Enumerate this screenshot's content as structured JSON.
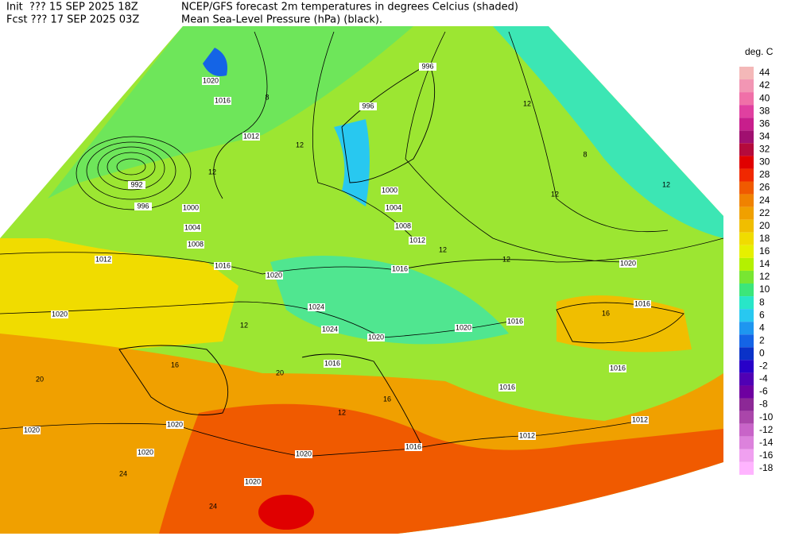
{
  "header": {
    "line1_left": "Init  ??? 15 SEP 2025 18Z",
    "line1_right": "NCEP/GFS forecast 2m temperatures in degrees Celcius (shaded)",
    "line2_left": "Fcst ??? 17 SEP 2025 03Z",
    "line2_right": "Mean Sea-Level Pressure (hPa) (black)."
  },
  "legend": {
    "title": "deg. C",
    "items": [
      {
        "label": 44,
        "color": "#f4b8b8"
      },
      {
        "label": 42,
        "color": "#f296b4"
      },
      {
        "label": 40,
        "color": "#f070a8"
      },
      {
        "label": 38,
        "color": "#e040a0"
      },
      {
        "label": 36,
        "color": "#c81e8c"
      },
      {
        "label": 34,
        "color": "#a01070"
      },
      {
        "label": 32,
        "color": "#b40a3c"
      },
      {
        "label": 30,
        "color": "#e00000"
      },
      {
        "label": 28,
        "color": "#f02800"
      },
      {
        "label": 26,
        "color": "#f05a00"
      },
      {
        "label": 24,
        "color": "#f08200"
      },
      {
        "label": 22,
        "color": "#f0a000"
      },
      {
        "label": 20,
        "color": "#f0be00"
      },
      {
        "label": 18,
        "color": "#f0dc00"
      },
      {
        "label": 16,
        "color": "#e6f000"
      },
      {
        "label": 14,
        "color": "#b4f000"
      },
      {
        "label": 12,
        "color": "#78e632"
      },
      {
        "label": 10,
        "color": "#3ce67a"
      },
      {
        "label": 8,
        "color": "#28e6c8"
      },
      {
        "label": 6,
        "color": "#28c8f0"
      },
      {
        "label": 4,
        "color": "#1e96f0"
      },
      {
        "label": 2,
        "color": "#1464e6"
      },
      {
        "label": 0,
        "color": "#0a32c8"
      },
      {
        "label": -2,
        "color": "#2800c8"
      },
      {
        "label": -4,
        "color": "#5000b4"
      },
      {
        "label": -6,
        "color": "#6e00a0"
      },
      {
        "label": -8,
        "color": "#8c2896"
      },
      {
        "label": -10,
        "color": "#aa46aa"
      },
      {
        "label": -12,
        "color": "#c864c8"
      },
      {
        "label": -14,
        "color": "#dc82dc"
      },
      {
        "label": -16,
        "color": "#f0a0f0"
      },
      {
        "label": -18,
        "color": "#ffb4ff"
      }
    ]
  },
  "map": {
    "labels": [
      "1020",
      "1016",
      "8",
      "1012",
      "12",
      "12",
      "992",
      "996",
      "1000",
      "1004",
      "1008",
      "1012",
      "1016",
      "1020",
      "1020",
      "1024",
      "1024",
      "1020",
      "1016",
      "12",
      "16",
      "20",
      "1020",
      "1020",
      "1020",
      "24",
      "1020",
      "24",
      "1020",
      "996",
      "996",
      "12",
      "8",
      "1000",
      "1004",
      "1008",
      "1012",
      "12",
      "1016",
      "12",
      "1020",
      "1016",
      "12",
      "12",
      "1020",
      "1016",
      "16",
      "1016",
      "1016",
      "1012",
      "1012",
      "1016",
      "20",
      "16",
      "12"
    ]
  }
}
